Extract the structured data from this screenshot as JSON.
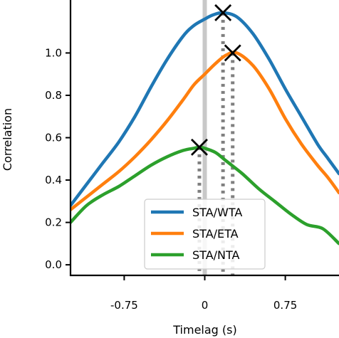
{
  "chart_data": {
    "type": "line",
    "title": "",
    "xlabel": "Timelag (s)",
    "ylabel": "Correlation",
    "xlim": [
      -1.25,
      1.25
    ],
    "ylim": [
      -0.05,
      1.25
    ],
    "x_ticks": [
      -0.75,
      0,
      0.75
    ],
    "x_tick_labels": [
      "-0.75",
      "0",
      "0.75"
    ],
    "y_ticks": [
      0.0,
      0.2,
      0.4,
      0.6,
      0.8,
      1.0
    ],
    "y_tick_labels": [
      "0.0",
      "0.2",
      "0.4",
      "0.6",
      "0.8",
      "1.0"
    ],
    "zero_line": {
      "x": 0,
      "color": "#c8c8c8"
    },
    "legend_position": "lower-center",
    "grid": false,
    "series": [
      {
        "name": "STA/WTA",
        "color": "#1f77b4",
        "x": [
          -1.25,
          -1.1,
          -0.95,
          -0.8,
          -0.65,
          -0.5,
          -0.35,
          -0.2,
          -0.1,
          0.0,
          0.08,
          0.17,
          0.3,
          0.45,
          0.6,
          0.75,
          0.9,
          1.05,
          1.15,
          1.25
        ],
        "y": [
          0.28,
          0.38,
          0.48,
          0.58,
          0.7,
          0.84,
          0.97,
          1.08,
          1.13,
          1.16,
          1.18,
          1.19,
          1.17,
          1.09,
          0.97,
          0.83,
          0.7,
          0.57,
          0.5,
          0.43
        ]
      },
      {
        "name": "STA/ETA",
        "color": "#ff7f0e",
        "x": [
          -1.25,
          -1.1,
          -0.95,
          -0.8,
          -0.65,
          -0.5,
          -0.35,
          -0.2,
          -0.1,
          0.0,
          0.1,
          0.2,
          0.3,
          0.45,
          0.6,
          0.75,
          0.9,
          1.05,
          1.15,
          1.25
        ],
        "y": [
          0.26,
          0.32,
          0.38,
          0.44,
          0.51,
          0.59,
          0.68,
          0.78,
          0.85,
          0.9,
          0.95,
          0.99,
          1.0,
          0.94,
          0.83,
          0.69,
          0.57,
          0.47,
          0.41,
          0.34
        ]
      },
      {
        "name": "STA/NTA",
        "color": "#2ca02c",
        "x": [
          -1.25,
          -1.1,
          -0.95,
          -0.8,
          -0.65,
          -0.5,
          -0.35,
          -0.2,
          -0.1,
          -0.05,
          0.0,
          0.1,
          0.2,
          0.35,
          0.5,
          0.65,
          0.8,
          0.95,
          1.1,
          1.25
        ],
        "y": [
          0.2,
          0.28,
          0.33,
          0.37,
          0.42,
          0.47,
          0.51,
          0.54,
          0.55,
          0.555,
          0.55,
          0.53,
          0.49,
          0.43,
          0.36,
          0.3,
          0.24,
          0.19,
          0.17,
          0.1
        ]
      }
    ],
    "peaks": [
      {
        "series": "STA/WTA",
        "x": 0.17,
        "y": 1.19
      },
      {
        "series": "STA/ETA",
        "x": 0.26,
        "y": 1.0
      },
      {
        "series": "STA/NTA",
        "x": -0.05,
        "y": 0.555
      }
    ]
  }
}
